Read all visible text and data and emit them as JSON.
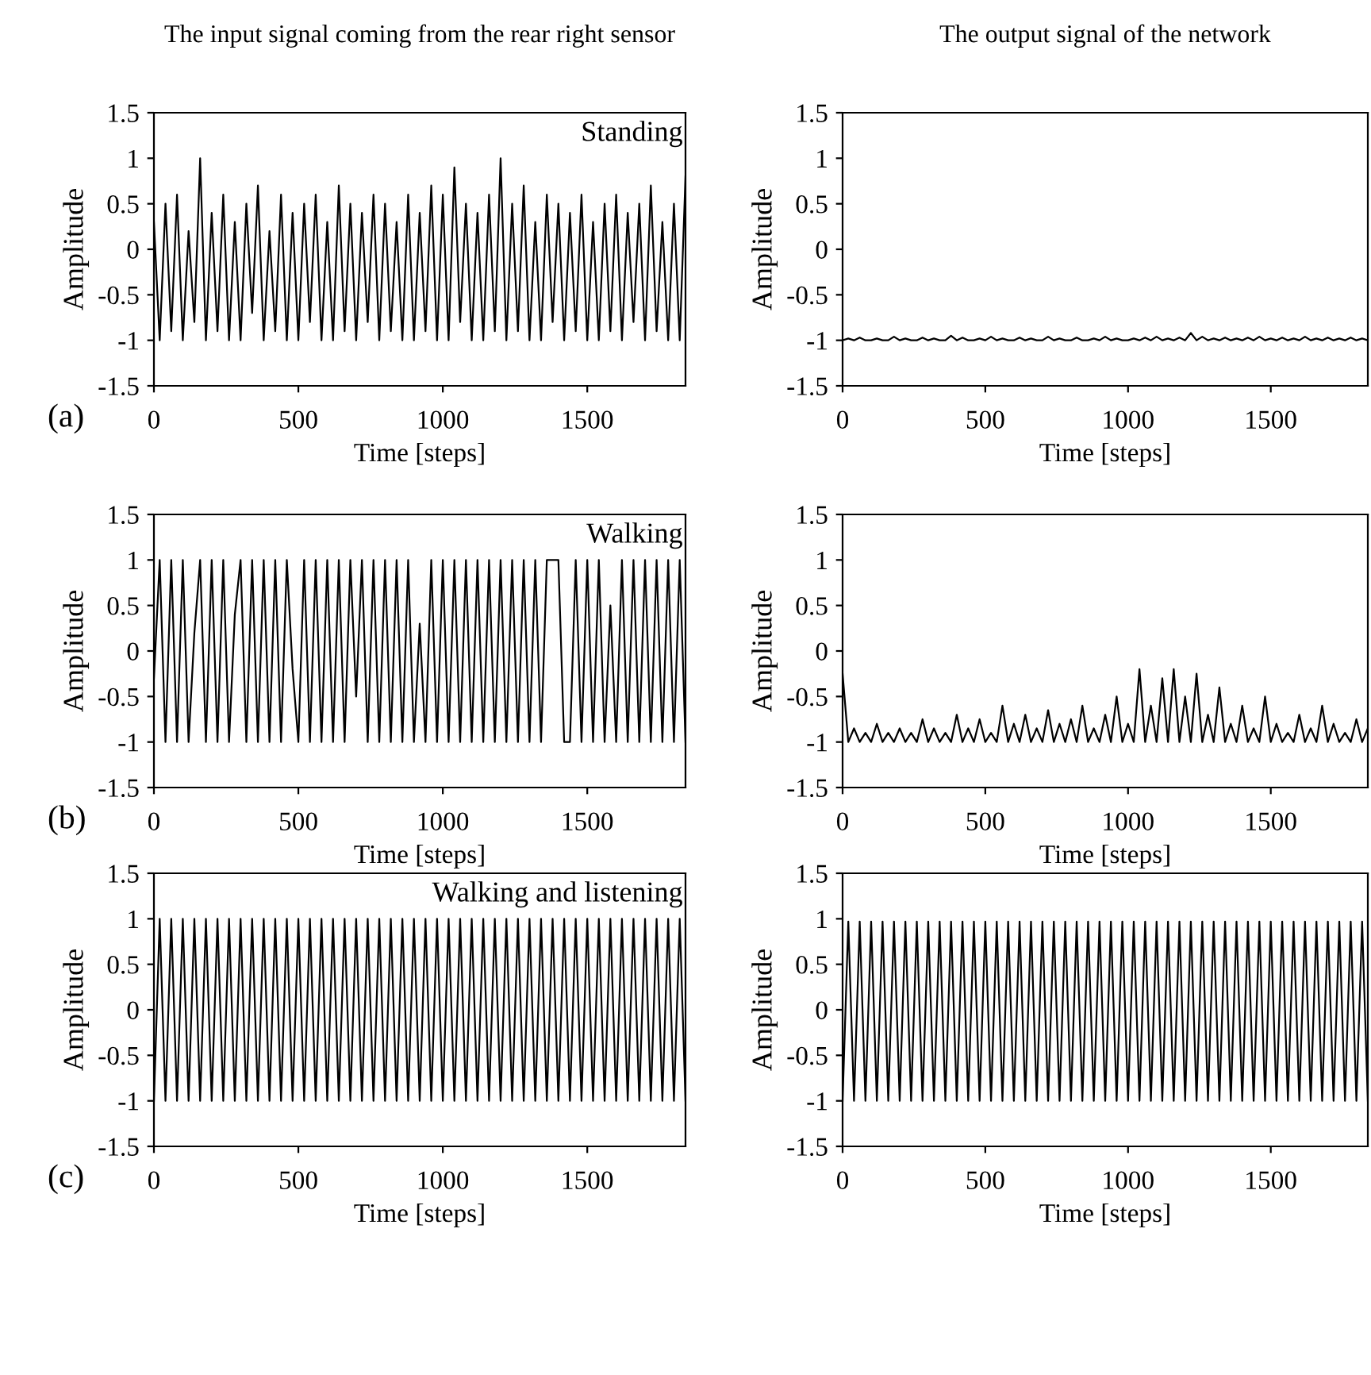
{
  "chart_data": [
    {
      "type": "line",
      "title": "The input signal coming from the rear right sensor",
      "xlabel": "Time [steps]",
      "ylabel": "Amplitude",
      "annotations": [
        "Standing",
        "(a)"
      ],
      "xlim": [
        0,
        1840
      ],
      "xticks": [
        0,
        500,
        1000,
        1500
      ],
      "ylim": [
        -1.5,
        1.5
      ],
      "yticks": [
        {
          "value": -1.5,
          "label": "-1.5"
        },
        {
          "value": -1,
          "label": "-1"
        },
        {
          "value": -0.5,
          "label": "-0.5"
        },
        0,
        0.5,
        1,
        1.5
      ],
      "color": "#000000",
      "x": [
        0,
        20,
        40,
        60,
        80,
        100,
        120,
        140,
        160,
        180,
        200,
        220,
        240,
        260,
        280,
        300,
        320,
        340,
        360,
        380,
        400,
        420,
        440,
        460,
        480,
        500,
        520,
        540,
        560,
        580,
        600,
        620,
        640,
        660,
        680,
        700,
        720,
        740,
        760,
        780,
        800,
        820,
        840,
        860,
        880,
        900,
        920,
        940,
        960,
        980,
        1000,
        1020,
        1040,
        1060,
        1080,
        1100,
        1120,
        1140,
        1160,
        1180,
        1200,
        1220,
        1240,
        1260,
        1280,
        1300,
        1320,
        1340,
        1360,
        1380,
        1400,
        1420,
        1440,
        1460,
        1480,
        1500,
        1520,
        1540,
        1560,
        1580,
        1600,
        1620,
        1640,
        1660,
        1680,
        1700,
        1720,
        1740,
        1760,
        1780,
        1800,
        1820,
        1840
      ],
      "values": [
        0.3,
        -1,
        0.5,
        -0.9,
        0.6,
        -1,
        0.2,
        -0.8,
        1,
        -1,
        0.4,
        -0.9,
        0.6,
        -1,
        0.3,
        -1,
        0.5,
        -0.7,
        0.7,
        -1,
        0.2,
        -0.9,
        0.6,
        -1,
        0.4,
        -1,
        0.5,
        -0.8,
        0.6,
        -1,
        0.3,
        -1,
        0.7,
        -0.9,
        0.5,
        -1,
        0.4,
        -0.8,
        0.6,
        -1,
        0.5,
        -0.9,
        0.3,
        -1,
        0.6,
        -1,
        0.4,
        -0.9,
        0.7,
        -1,
        0.6,
        -1,
        0.9,
        -0.8,
        0.5,
        -1,
        0.4,
        -1,
        0.6,
        -0.9,
        1,
        -1,
        0.5,
        -0.9,
        0.7,
        -1,
        0.3,
        -1,
        0.6,
        -0.8,
        0.5,
        -1,
        0.4,
        -0.9,
        0.6,
        -1,
        0.3,
        -1,
        0.5,
        -0.9,
        0.6,
        -1,
        0.4,
        -0.8,
        0.5,
        -1,
        0.7,
        -0.9,
        0.3,
        -1,
        0.5,
        -1,
        0.8
      ]
    },
    {
      "type": "line",
      "title": "The output signal of the network",
      "xlabel": "Time [steps]",
      "ylabel": "Amplitude",
      "xlim": [
        0,
        1840
      ],
      "xticks": [
        0,
        500,
        1000,
        1500
      ],
      "ylim": [
        -1.5,
        1.5
      ],
      "yticks": [
        {
          "value": -1.5,
          "label": "-1.5"
        },
        {
          "value": -1,
          "label": "-1"
        },
        {
          "value": -0.5,
          "label": "-0.5"
        },
        0,
        0.5,
        1,
        1.5
      ],
      "color": "#000000",
      "x": [
        0,
        20,
        40,
        60,
        80,
        100,
        120,
        140,
        160,
        180,
        200,
        220,
        240,
        260,
        280,
        300,
        320,
        340,
        360,
        380,
        400,
        420,
        440,
        460,
        480,
        500,
        520,
        540,
        560,
        580,
        600,
        620,
        640,
        660,
        680,
        700,
        720,
        740,
        760,
        780,
        800,
        820,
        840,
        860,
        880,
        900,
        920,
        940,
        960,
        980,
        1000,
        1020,
        1040,
        1060,
        1080,
        1100,
        1120,
        1140,
        1160,
        1180,
        1200,
        1220,
        1240,
        1260,
        1280,
        1300,
        1320,
        1340,
        1360,
        1380,
        1400,
        1420,
        1440,
        1460,
        1480,
        1500,
        1520,
        1540,
        1560,
        1580,
        1600,
        1620,
        1640,
        1660,
        1680,
        1700,
        1720,
        1740,
        1760,
        1780,
        1800,
        1820,
        1840
      ],
      "values": [
        -1,
        -0.98,
        -1,
        -0.97,
        -1,
        -1,
        -0.98,
        -1,
        -1,
        -0.96,
        -1,
        -0.98,
        -1,
        -1,
        -0.97,
        -1,
        -0.98,
        -1,
        -1,
        -0.95,
        -1,
        -0.97,
        -1,
        -1,
        -0.98,
        -1,
        -0.96,
        -1,
        -0.98,
        -1,
        -1,
        -0.97,
        -1,
        -0.98,
        -1,
        -1,
        -0.96,
        -1,
        -0.98,
        -1,
        -1,
        -0.97,
        -1,
        -1,
        -0.98,
        -1,
        -0.96,
        -1,
        -0.98,
        -1,
        -1,
        -0.98,
        -1,
        -0.97,
        -1,
        -0.96,
        -1,
        -0.98,
        -1,
        -0.97,
        -1,
        -0.92,
        -1,
        -0.96,
        -1,
        -0.98,
        -1,
        -0.97,
        -1,
        -0.98,
        -1,
        -0.97,
        -1,
        -0.96,
        -1,
        -0.98,
        -1,
        -0.97,
        -1,
        -0.98,
        -1,
        -0.96,
        -1,
        -0.98,
        -1,
        -0.97,
        -1,
        -0.98,
        -1,
        -0.97,
        -1,
        -0.98,
        -1
      ]
    },
    {
      "type": "line",
      "xlabel": "Time [steps]",
      "ylabel": "Amplitude",
      "annotations": [
        "Walking",
        "(b)"
      ],
      "xlim": [
        0,
        1840
      ],
      "xticks": [
        0,
        500,
        1000,
        1500
      ],
      "ylim": [
        -1.5,
        1.5
      ],
      "yticks": [
        {
          "value": -1.5,
          "label": "-1.5"
        },
        {
          "value": -1,
          "label": "-1"
        },
        {
          "value": -0.5,
          "label": "-0.5"
        },
        0,
        0.5,
        1,
        1.5
      ],
      "color": "#000000",
      "x": [
        0,
        20,
        40,
        60,
        80,
        100,
        120,
        140,
        160,
        180,
        200,
        220,
        240,
        260,
        280,
        300,
        320,
        340,
        360,
        380,
        400,
        420,
        440,
        460,
        480,
        500,
        520,
        540,
        560,
        580,
        600,
        620,
        640,
        660,
        680,
        700,
        720,
        740,
        760,
        780,
        800,
        820,
        840,
        860,
        880,
        900,
        920,
        940,
        960,
        980,
        1000,
        1020,
        1040,
        1060,
        1080,
        1100,
        1120,
        1140,
        1160,
        1180,
        1200,
        1220,
        1240,
        1260,
        1280,
        1300,
        1320,
        1340,
        1360,
        1380,
        1400,
        1420,
        1440,
        1460,
        1480,
        1500,
        1520,
        1540,
        1560,
        1580,
        1600,
        1620,
        1640,
        1660,
        1680,
        1700,
        1720,
        1740,
        1760,
        1780,
        1800,
        1820,
        1840
      ],
      "values": [
        -0.3,
        1,
        -1,
        1,
        -1,
        1,
        -1,
        0.2,
        1,
        -1,
        1,
        -1,
        1,
        -1,
        0.4,
        1,
        -1,
        1,
        -1,
        1,
        -1,
        1,
        -1,
        1,
        -0.2,
        -1,
        1,
        -1,
        1,
        -1,
        1,
        -1,
        1,
        -1,
        1,
        -0.5,
        1,
        -1,
        1,
        -1,
        1,
        -1,
        1,
        -1,
        1,
        -1,
        0.3,
        -1,
        1,
        -1,
        1,
        -1,
        1,
        -1,
        1,
        -1,
        1,
        -1,
        1,
        -1,
        1,
        -1,
        1,
        -1,
        1,
        -1,
        1,
        -1,
        1,
        1,
        1,
        -1,
        -1,
        1,
        -1,
        1,
        -1,
        1,
        -1,
        0.5,
        -1,
        1,
        -1,
        1,
        -1,
        1,
        -1,
        1,
        -1,
        1,
        -1,
        1,
        -1
      ]
    },
    {
      "type": "line",
      "xlabel": "Time [steps]",
      "ylabel": "Amplitude",
      "xlim": [
        0,
        1840
      ],
      "xticks": [
        0,
        500,
        1000,
        1500
      ],
      "ylim": [
        -1.5,
        1.5
      ],
      "yticks": [
        {
          "value": -1.5,
          "label": "-1.5"
        },
        {
          "value": -1,
          "label": "-1"
        },
        {
          "value": -0.5,
          "label": "-0.5"
        },
        0,
        0.5,
        1,
        1.5
      ],
      "color": "#000000",
      "x": [
        0,
        20,
        40,
        60,
        80,
        100,
        120,
        140,
        160,
        180,
        200,
        220,
        240,
        260,
        280,
        300,
        320,
        340,
        360,
        380,
        400,
        420,
        440,
        460,
        480,
        500,
        520,
        540,
        560,
        580,
        600,
        620,
        640,
        660,
        680,
        700,
        720,
        740,
        760,
        780,
        800,
        820,
        840,
        860,
        880,
        900,
        920,
        940,
        960,
        980,
        1000,
        1020,
        1040,
        1060,
        1080,
        1100,
        1120,
        1140,
        1160,
        1180,
        1200,
        1220,
        1240,
        1260,
        1280,
        1300,
        1320,
        1340,
        1360,
        1380,
        1400,
        1420,
        1440,
        1460,
        1480,
        1500,
        1520,
        1540,
        1560,
        1580,
        1600,
        1620,
        1640,
        1660,
        1680,
        1700,
        1720,
        1740,
        1760,
        1780,
        1800,
        1820,
        1840
      ],
      "values": [
        -0.25,
        -1,
        -0.85,
        -1,
        -0.9,
        -1,
        -0.8,
        -1,
        -0.9,
        -1,
        -0.85,
        -1,
        -0.9,
        -1,
        -0.75,
        -1,
        -0.85,
        -1,
        -0.9,
        -1,
        -0.7,
        -1,
        -0.85,
        -1,
        -0.75,
        -1,
        -0.9,
        -1,
        -0.6,
        -1,
        -0.8,
        -1,
        -0.7,
        -1,
        -0.85,
        -1,
        -0.65,
        -1,
        -0.8,
        -1,
        -0.75,
        -1,
        -0.6,
        -1,
        -0.85,
        -1,
        -0.7,
        -1,
        -0.5,
        -1,
        -0.8,
        -1,
        -0.2,
        -1,
        -0.6,
        -1,
        -0.3,
        -1,
        -0.2,
        -1,
        -0.5,
        -1,
        -0.25,
        -1,
        -0.7,
        -1,
        -0.4,
        -1,
        -0.8,
        -1,
        -0.6,
        -1,
        -0.85,
        -1,
        -0.5,
        -1,
        -0.8,
        -1,
        -0.9,
        -1,
        -0.7,
        -1,
        -0.85,
        -1,
        -0.6,
        -1,
        -0.8,
        -1,
        -0.9,
        -1,
        -0.75,
        -1,
        -0.85
      ]
    },
    {
      "type": "line",
      "xlabel": "Time [steps]",
      "ylabel": "Amplitude",
      "annotations": [
        "Walking and listening",
        "(c)"
      ],
      "xlim": [
        0,
        1840
      ],
      "xticks": [
        0,
        500,
        1000,
        1500
      ],
      "ylim": [
        -1.5,
        1.5
      ],
      "yticks": [
        {
          "value": -1.5,
          "label": "-1.5"
        },
        {
          "value": -1,
          "label": "-1"
        },
        {
          "value": -0.5,
          "label": "-0.5"
        },
        0,
        0.5,
        1,
        1.5
      ],
      "color": "#000000",
      "x": [
        0,
        20,
        40,
        60,
        80,
        100,
        120,
        140,
        160,
        180,
        200,
        220,
        240,
        260,
        280,
        300,
        320,
        340,
        360,
        380,
        400,
        420,
        440,
        460,
        480,
        500,
        520,
        540,
        560,
        580,
        600,
        620,
        640,
        660,
        680,
        700,
        720,
        740,
        760,
        780,
        800,
        820,
        840,
        860,
        880,
        900,
        920,
        940,
        960,
        980,
        1000,
        1020,
        1040,
        1060,
        1080,
        1100,
        1120,
        1140,
        1160,
        1180,
        1200,
        1220,
        1240,
        1260,
        1280,
        1300,
        1320,
        1340,
        1360,
        1380,
        1400,
        1420,
        1440,
        1460,
        1480,
        1500,
        1520,
        1540,
        1560,
        1580,
        1600,
        1620,
        1640,
        1660,
        1680,
        1700,
        1720,
        1740,
        1760,
        1780,
        1800,
        1820,
        1840
      ],
      "values": [
        -1,
        1,
        -1,
        1,
        -1,
        1,
        -1,
        1,
        -1,
        1,
        -1,
        1,
        -1,
        1,
        -1,
        1,
        -1,
        1,
        -1,
        1,
        -1,
        1,
        -1,
        1,
        -1,
        1,
        -1,
        1,
        -1,
        1,
        -1,
        1,
        -1,
        1,
        -1,
        1,
        -1,
        1,
        -1,
        1,
        -1,
        1,
        -1,
        1,
        -1,
        1,
        -1,
        1,
        -1,
        1,
        -1,
        1,
        -1,
        1,
        -1,
        1,
        -1,
        1,
        -1,
        1,
        -1,
        1,
        -1,
        1,
        -1,
        1,
        -1,
        1,
        -1,
        1,
        -1,
        1,
        -1,
        1,
        -1,
        1,
        -1,
        1,
        -1,
        1,
        -1,
        1,
        -1,
        1,
        -1,
        1,
        -1,
        1,
        -1,
        1,
        -1,
        1,
        -1
      ]
    },
    {
      "type": "line",
      "xlabel": "Time [steps]",
      "ylabel": "Amplitude",
      "xlim": [
        0,
        1840
      ],
      "xticks": [
        0,
        500,
        1000,
        1500
      ],
      "ylim": [
        -1.5,
        1.5
      ],
      "yticks": [
        {
          "value": -1.5,
          "label": "-1.5"
        },
        {
          "value": -1,
          "label": "-1"
        },
        {
          "value": -0.5,
          "label": "-0.5"
        },
        0,
        0.5,
        1,
        1.5
      ],
      "color": "#000000",
      "x": [
        0,
        20,
        40,
        60,
        80,
        100,
        120,
        140,
        160,
        180,
        200,
        220,
        240,
        260,
        280,
        300,
        320,
        340,
        360,
        380,
        400,
        420,
        440,
        460,
        480,
        500,
        520,
        540,
        560,
        580,
        600,
        620,
        640,
        660,
        680,
        700,
        720,
        740,
        760,
        780,
        800,
        820,
        840,
        860,
        880,
        900,
        920,
        940,
        960,
        980,
        1000,
        1020,
        1040,
        1060,
        1080,
        1100,
        1120,
        1140,
        1160,
        1180,
        1200,
        1220,
        1240,
        1260,
        1280,
        1300,
        1320,
        1340,
        1360,
        1380,
        1400,
        1420,
        1440,
        1460,
        1480,
        1500,
        1520,
        1540,
        1560,
        1580,
        1600,
        1620,
        1640,
        1660,
        1680,
        1700,
        1720,
        1740,
        1760,
        1780,
        1800,
        1820,
        1840
      ],
      "values": [
        -1,
        0.97,
        -1,
        0.97,
        -1,
        0.97,
        -1,
        0.97,
        -1,
        0.97,
        -1,
        0.97,
        -1,
        0.97,
        -1,
        0.97,
        -1,
        0.97,
        -1,
        0.97,
        -1,
        0.97,
        -1,
        0.97,
        -1,
        0.97,
        -1,
        0.97,
        -1,
        0.97,
        -1,
        0.97,
        -1,
        0.97,
        -1,
        0.97,
        -1,
        0.97,
        -1,
        0.97,
        -1,
        0.97,
        -1,
        0.97,
        -1,
        0.97,
        -1,
        0.97,
        -1,
        0.97,
        -1,
        0.97,
        -1,
        0.97,
        -1,
        0.97,
        -1,
        0.97,
        -1,
        0.97,
        -1,
        0.97,
        -1,
        0.97,
        -1,
        0.97,
        -1,
        0.97,
        -1,
        0.97,
        -1,
        0.97,
        -1,
        0.97,
        -1,
        0.97,
        -1,
        0.97,
        -1,
        0.97,
        -1,
        0.97,
        -1,
        0.97,
        -1,
        0.97,
        -1,
        0.97,
        -1,
        0.97,
        -1,
        0.97,
        -1
      ]
    }
  ]
}
